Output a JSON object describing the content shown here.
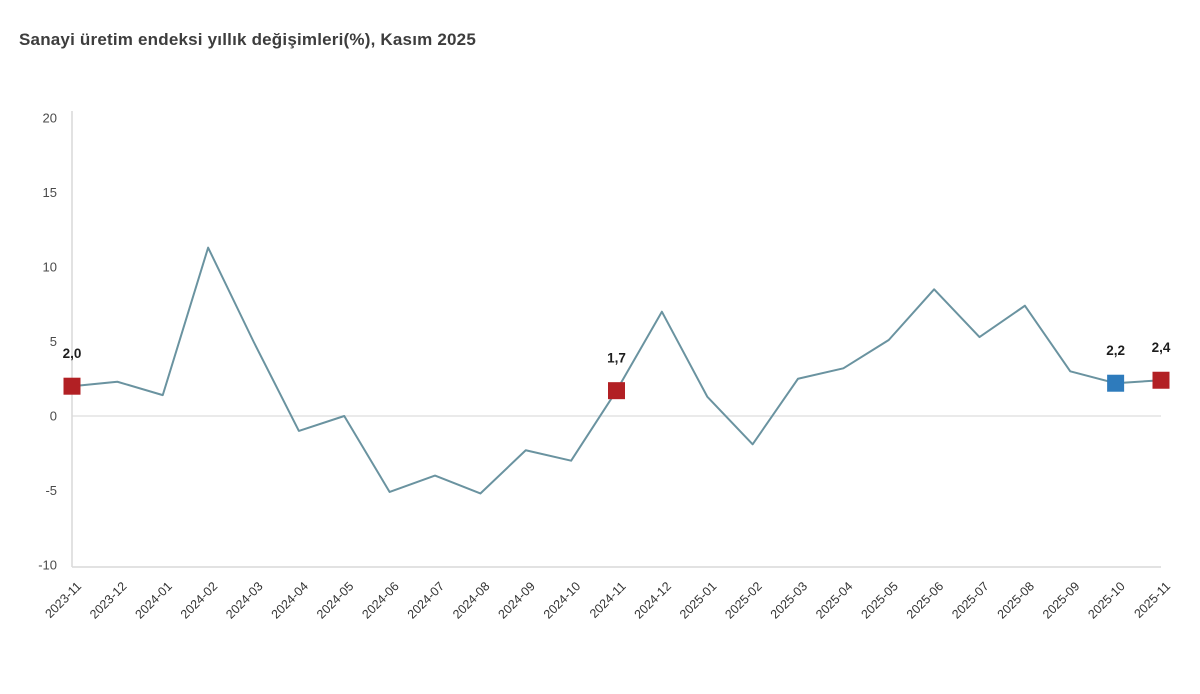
{
  "title": "Sanayi üretim endeksi yıllık değişimleri(%), Kasım 2025",
  "colors": {
    "line": "#6a93a0",
    "marker_red": "#b22024",
    "marker_blue": "#2e7bbc",
    "zero_gridline": "#e3e3e3",
    "axis": "#d9d9d9"
  },
  "chart_data": {
    "type": "line",
    "title": "Sanayi üretim endeksi yıllık değişimleri(%), Kasım 2025",
    "x": [
      "2023-11",
      "2023-12",
      "2024-01",
      "2024-02",
      "2024-03",
      "2024-04",
      "2024-05",
      "2024-06",
      "2024-07",
      "2024-08",
      "2024-09",
      "2024-10",
      "2024-11",
      "2024-12",
      "2025-01",
      "2025-02",
      "2025-03",
      "2025-04",
      "2025-05",
      "2025-06",
      "2025-07",
      "2025-08",
      "2025-09",
      "2025-10",
      "2025-11"
    ],
    "values": [
      2.0,
      2.3,
      1.4,
      11.3,
      5.0,
      -1.0,
      0.0,
      -5.1,
      -4.0,
      -5.2,
      -2.3,
      -3.0,
      1.7,
      7.0,
      1.3,
      -1.9,
      2.5,
      3.2,
      5.1,
      8.5,
      5.3,
      7.4,
      3.0,
      2.2,
      2.4
    ],
    "ylim": [
      -10,
      20
    ],
    "yticks": [
      20,
      15,
      10,
      5,
      0,
      -5,
      -10
    ],
    "grid": "horizontal zero line only",
    "legend": "none",
    "x_label_rotation_deg": 45,
    "annotated_points": [
      {
        "month": "2023-11",
        "value": 2.0,
        "label": "2,0",
        "marker": "square",
        "marker_color": "#b22024"
      },
      {
        "month": "2024-11",
        "value": 1.7,
        "label": "1,7",
        "marker": "square",
        "marker_color": "#b22024"
      },
      {
        "month": "2025-10",
        "value": 2.2,
        "label": "2,2",
        "marker": "square",
        "marker_color": "#2e7bbc"
      },
      {
        "month": "2025-11",
        "value": 2.4,
        "label": "2,4",
        "marker": "square",
        "marker_color": "#b22024"
      }
    ]
  }
}
